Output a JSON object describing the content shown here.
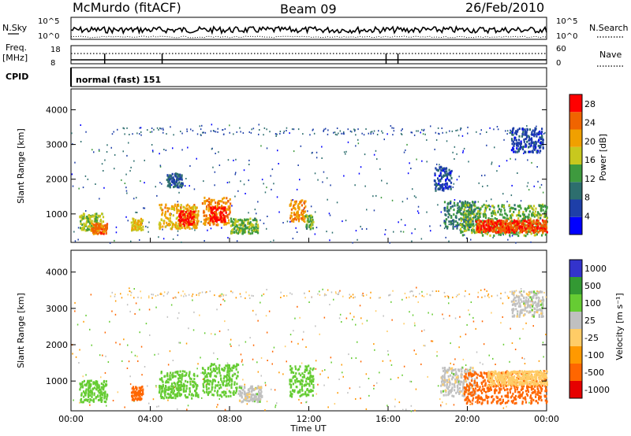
{
  "header": {
    "station": "McMurdo (fitACF)",
    "beam": "Beam 09",
    "date": "26/Feb/2010"
  },
  "strips": {
    "nsky_label": "N.Sky",
    "nsky_top": "10^5",
    "nsky_bottom": "10^0",
    "nsearch_label": "N.Search",
    "nsearch_top": "10^5",
    "nsearch_bottom": "10^0",
    "freq_label_1": "Freq.",
    "freq_label_2": "[MHz]",
    "freq_top": "18",
    "freq_bottom": "8",
    "nave_label": "Nave",
    "nave_top": "60",
    "nave_bottom": "0",
    "cpid_label": "CPID",
    "cpid_value": "normal (fast) 151"
  },
  "colors": {
    "power_scale": [
      "#0000ff",
      "#1e3fa8",
      "#2d6e6e",
      "#3e9a3e",
      "#c8c81e",
      "#f0a000",
      "#f06400",
      "#ff0000"
    ],
    "velocity_scale": [
      "#e60000",
      "#ff6600",
      "#ff9900",
      "#ffcc66",
      "#c0c0c0",
      "#66cc33",
      "#339933",
      "#3333cc"
    ]
  },
  "chart_data": [
    {
      "type": "heatmap",
      "name": "power",
      "xlabel": "",
      "ylabel": "Slant Range [km]",
      "ylim": [
        180,
        4600
      ],
      "yticks": [
        1000,
        2000,
        3000,
        4000
      ],
      "xticks": [
        "00:00",
        "04:00",
        "08:00",
        "12:00",
        "16:00",
        "20:00",
        "00:00"
      ],
      "colorbar_label": "Power [dB]",
      "colorbar_ticks": [
        "4",
        "8",
        "12",
        "16",
        "20",
        "24",
        "28"
      ],
      "colorbar_range": [
        0,
        30
      ],
      "regions": [
        {
          "t0": 0.4,
          "t1": 1.6,
          "r0": 550,
          "r1": 1050,
          "v": 16
        },
        {
          "t0": 1.0,
          "t1": 1.8,
          "r0": 450,
          "r1": 750,
          "v": 24
        },
        {
          "t0": 3.0,
          "t1": 3.6,
          "r0": 550,
          "r1": 900,
          "v": 18
        },
        {
          "t0": 4.4,
          "t1": 6.4,
          "r0": 600,
          "r1": 1300,
          "v": 20
        },
        {
          "t0": 5.4,
          "t1": 6.2,
          "r0": 700,
          "r1": 1150,
          "v": 27
        },
        {
          "t0": 4.8,
          "t1": 5.6,
          "r0": 1800,
          "r1": 2200,
          "v": 8
        },
        {
          "t0": 6.6,
          "t1": 8.0,
          "r0": 700,
          "r1": 1500,
          "v": 22
        },
        {
          "t0": 7.0,
          "t1": 7.8,
          "r0": 800,
          "r1": 1250,
          "v": 28
        },
        {
          "t0": 8.0,
          "t1": 9.4,
          "r0": 450,
          "r1": 900,
          "v": 14
        },
        {
          "t0": 11.0,
          "t1": 11.8,
          "r0": 800,
          "r1": 1450,
          "v": 22
        },
        {
          "t0": 11.8,
          "t1": 12.2,
          "r0": 600,
          "r1": 1000,
          "v": 14
        },
        {
          "t0": 18.3,
          "t1": 19.2,
          "r0": 1700,
          "r1": 2400,
          "v": 6
        },
        {
          "t0": 18.8,
          "t1": 20.4,
          "r0": 600,
          "r1": 1400,
          "v": 10
        },
        {
          "t0": 19.6,
          "t1": 24.0,
          "r0": 400,
          "r1": 1300,
          "v": 14
        },
        {
          "t0": 20.4,
          "t1": 24.0,
          "r0": 500,
          "r1": 850,
          "v": 26
        },
        {
          "t0": 22.2,
          "t1": 23.8,
          "r0": 2800,
          "r1": 3500,
          "v": 6
        }
      ]
    },
    {
      "type": "heatmap",
      "name": "velocity",
      "xlabel": "Time UT",
      "ylabel": "Slant Range [km]",
      "ylim": [
        180,
        4600
      ],
      "yticks": [
        1000,
        2000,
        3000,
        4000
      ],
      "xticks": [
        "00:00",
        "04:00",
        "08:00",
        "12:00",
        "16:00",
        "20:00",
        "00:00"
      ],
      "colorbar_label": "Velocity [m s⁻¹]",
      "colorbar_ticks": [
        "1000",
        "500",
        "100",
        "25",
        "-25",
        "-100",
        "-500",
        "-1000"
      ],
      "regions": [
        {
          "t0": 0.4,
          "t1": 1.8,
          "r0": 450,
          "r1": 1050,
          "v": 300
        },
        {
          "t0": 3.0,
          "t1": 3.6,
          "r0": 500,
          "r1": 900,
          "v": -200
        },
        {
          "t0": 4.4,
          "t1": 6.4,
          "r0": 550,
          "r1": 1300,
          "v": 300
        },
        {
          "t0": 6.6,
          "t1": 8.4,
          "r0": 600,
          "r1": 1500,
          "v": 300
        },
        {
          "t0": 8.4,
          "t1": 9.6,
          "r0": 450,
          "r1": 900,
          "v": 60
        },
        {
          "t0": 11.0,
          "t1": 12.2,
          "r0": 600,
          "r1": 1450,
          "v": 300
        },
        {
          "t0": 18.6,
          "t1": 20.4,
          "r0": 600,
          "r1": 1400,
          "v": 60
        },
        {
          "t0": 19.8,
          "t1": 24.0,
          "r0": 400,
          "r1": 1300,
          "v": -300
        },
        {
          "t0": 21.0,
          "t1": 24.0,
          "r0": 900,
          "r1": 1300,
          "v": 0
        },
        {
          "t0": 22.2,
          "t1": 23.8,
          "r0": 2800,
          "r1": 3500,
          "v": 60
        }
      ]
    }
  ]
}
